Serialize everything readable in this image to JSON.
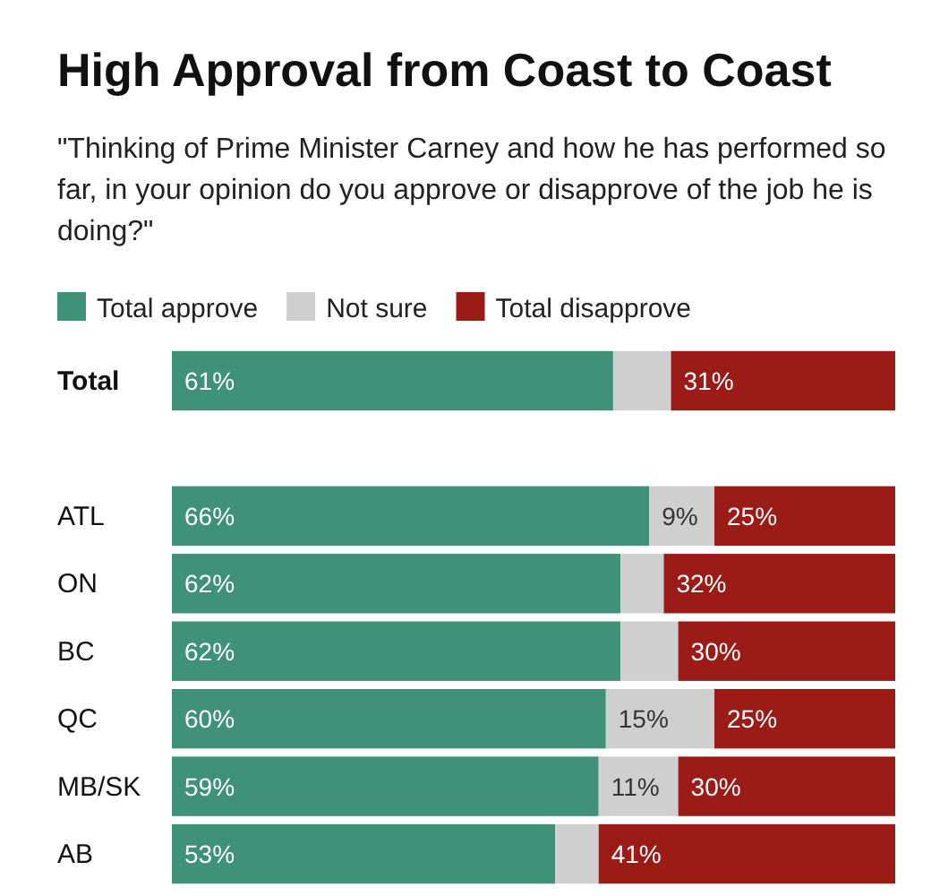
{
  "chart_data": {
    "type": "bar",
    "orientation": "horizontal",
    "stacked": true,
    "title": "High Approval from Coast to Coast",
    "subtitle": "\"Thinking of Prime Minister Carney and how he has performed so far, in your opinion do you approve or disapprove of the job he is doing?\"",
    "categories": [
      "Total",
      null,
      "ATL",
      "ON",
      "BC",
      "QC",
      "MB/SK",
      "AB"
    ],
    "xlim": [
      0,
      100
    ],
    "legend": "top left",
    "series": [
      {
        "name": "Total approve",
        "color": "#3f9178",
        "values": [
          61,
          null,
          66,
          62,
          62,
          60,
          59,
          53
        ],
        "value_labels": [
          "61%",
          null,
          "66%",
          "62%",
          "62%",
          "60%",
          "59%",
          "53%"
        ]
      },
      {
        "name": "Not sure",
        "color": "#cfcfcf",
        "values": [
          8,
          null,
          9,
          6,
          8,
          15,
          11,
          6
        ],
        "value_labels": [
          null,
          null,
          "9%",
          null,
          null,
          "15%",
          "11%",
          null
        ]
      },
      {
        "name": "Total disapprove",
        "color": "#9b1b16",
        "values": [
          31,
          null,
          25,
          32,
          30,
          25,
          30,
          41
        ],
        "value_labels": [
          "31%",
          null,
          "25%",
          "32%",
          "30%",
          "25%",
          "30%",
          "41%"
        ]
      }
    ]
  }
}
